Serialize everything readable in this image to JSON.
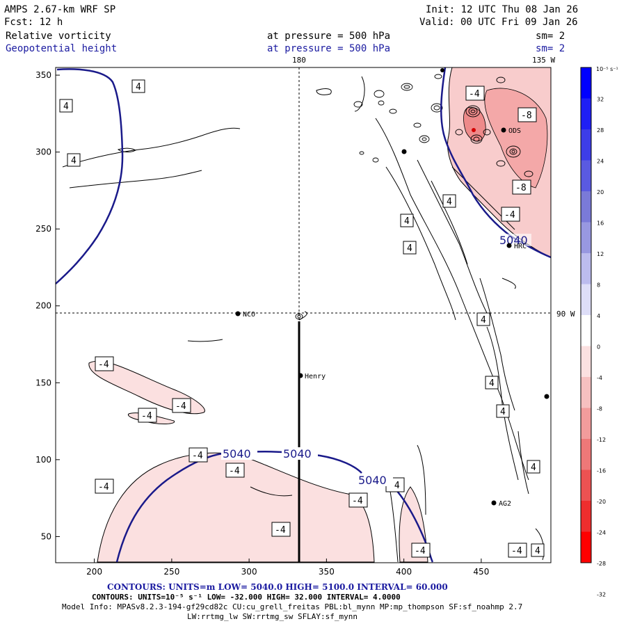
{
  "header": {
    "model": "AMPS 2.67-km WRF SP",
    "fcst": "Fcst:    12 h",
    "init": "Init: 12 UTC Thu 08 Jan 26",
    "valid": "Valid: 00 UTC Fri 09 Jan 26",
    "field1": "Relative vorticity",
    "field2": "Geopotential height",
    "pressure1": "at pressure =  500 hPa",
    "pressure2": "at pressure =  500 hPa",
    "sm1": "sm= 2",
    "sm2": "sm= 2"
  },
  "map_labels": {
    "lon180": "180",
    "lon135": "135 W",
    "lat90": "90 W"
  },
  "stations": [
    {
      "name": "NCO",
      "x": 293,
      "y": 195
    },
    {
      "name": "Henry",
      "x": 333,
      "y": 154
    },
    {
      "name": "AG2",
      "x": 460,
      "y": 72
    },
    {
      "name": "HRC",
      "x": 467,
      "y": 238
    },
    {
      "name": "ODS",
      "x": 456,
      "y": 313
    },
    {
      "name": "",
      "x": 401,
      "y": 300
    },
    {
      "name": "",
      "x": 496,
      "y": 141
    }
  ],
  "contour_labels": {
    "vort": [
      "-4",
      "4",
      "-8"
    ],
    "gph": "5040"
  },
  "colorbar": {
    "unit": "10⁻⁵ s⁻¹",
    "ticks": [
      "32",
      "28",
      "24",
      "20",
      "16",
      "12",
      "8",
      "4",
      "0",
      "-4",
      "-8",
      "-12",
      "-16",
      "-20",
      "-24",
      "-28",
      "-32"
    ],
    "colors": [
      "#0000ff",
      "#1f1ff5",
      "#3d3de8",
      "#5a5ae0",
      "#7a7ad8",
      "#9898e0",
      "#bcbcee",
      "#dedef8",
      "#ffffff",
      "#fbe0e0",
      "#f6c0c0",
      "#f29c9c",
      "#ee7878",
      "#ec5252",
      "#ee2e2e",
      "#ff0000"
    ]
  },
  "footer": {
    "line1_label": "CONTOURS:  UNITS=m  LOW=  5040.0          HIGH=  5100.0          INTERVAL=  60.000",
    "line2_label": "CONTOURS:  UNITS=10⁻⁵ s⁻¹   LOW= -32.000          HIGH=  32.000          INTERVAL=   4.0000",
    "line3": "Model Info: MPASv8.2.3-194-gf29cd82c CU:cu_grell_freitas PBL:bl_mynn MP:mp_thompson SF:sf_noahmp 2.7",
    "line4": "LW:rrtmg_lw SW:rrtmg_sw SFLAY:sf_mynn"
  },
  "chart_data": {
    "type": "heatmap",
    "title": "AMPS 2.67-km WRF SP — Relative vorticity & Geopotential height at 500 hPa",
    "x_ticks": [
      200,
      250,
      300,
      350,
      400,
      450
    ],
    "y_ticks": [
      50,
      100,
      150,
      200,
      250,
      300,
      350
    ],
    "xlim": [
      175,
      495
    ],
    "ylim": [
      33,
      355
    ],
    "colorbar_range": [
      -32,
      32
    ],
    "colorbar_interval": 4,
    "gph_contour": 5040
  }
}
